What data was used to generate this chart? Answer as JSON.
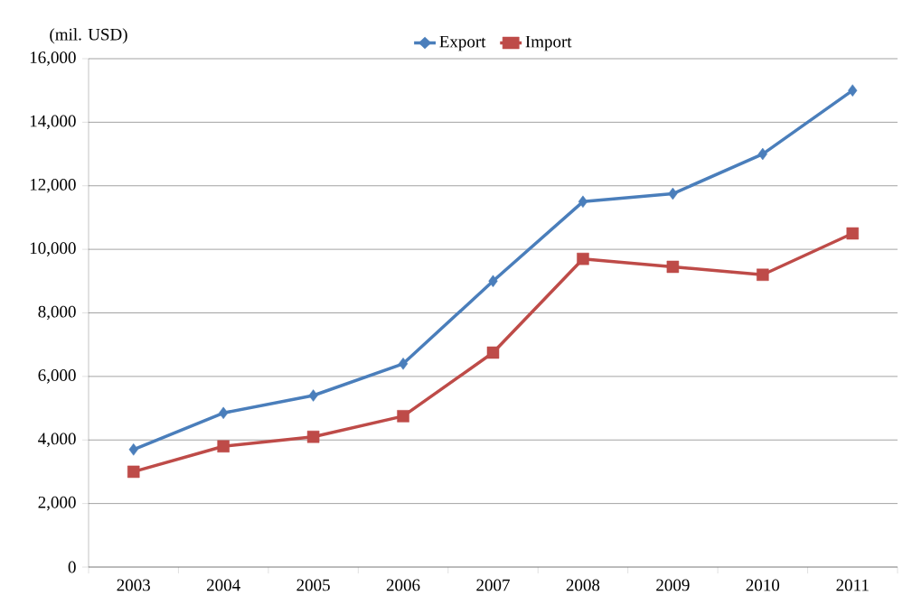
{
  "chart_data": {
    "type": "line",
    "ylabel": "(mil. USD)",
    "categories": [
      "2003",
      "2004",
      "2005",
      "2006",
      "2007",
      "2008",
      "2009",
      "2010",
      "2011"
    ],
    "series": [
      {
        "name": "Export",
        "color": "#4a7ebb",
        "marker": "diamond",
        "values": [
          3700,
          4850,
          5400,
          6400,
          9000,
          11500,
          11750,
          13000,
          15000
        ]
      },
      {
        "name": "Import",
        "color": "#be4b48",
        "marker": "square",
        "values": [
          3000,
          3800,
          4100,
          4750,
          6750,
          9700,
          9450,
          9200,
          10500
        ]
      }
    ],
    "ylim": [
      0,
      16000
    ],
    "yticks": [
      {
        "value": 0,
        "label": "0"
      },
      {
        "value": 2000,
        "label": "2,000"
      },
      {
        "value": 4000,
        "label": "4,000"
      },
      {
        "value": 6000,
        "label": "6,000"
      },
      {
        "value": 8000,
        "label": "8,000"
      },
      {
        "value": 10000,
        "label": "10,000"
      },
      {
        "value": 12000,
        "label": "12,000"
      },
      {
        "value": 14000,
        "label": "14,000"
      },
      {
        "value": 16000,
        "label": "16,000"
      }
    ],
    "grid": "y",
    "legend": "top",
    "line_style": "solid"
  }
}
